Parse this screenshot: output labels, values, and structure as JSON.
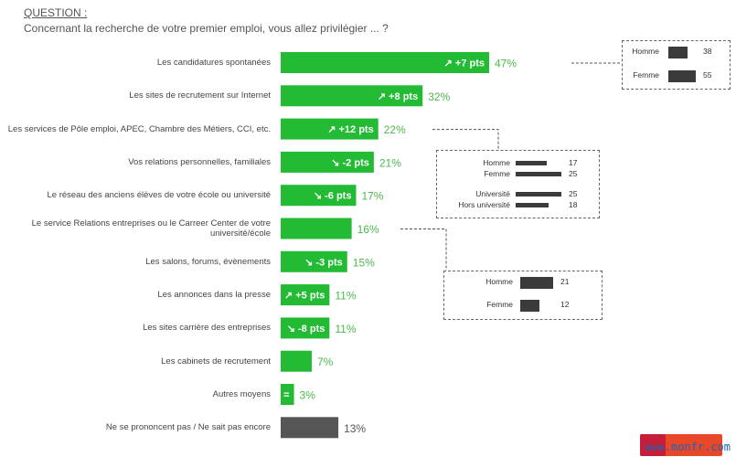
{
  "question": {
    "label": "QUESTION :",
    "text": "Concernant la recherche de votre premier emploi, vous allez privilégier ... ?"
  },
  "chart_data": {
    "type": "bar",
    "orientation": "horizontal",
    "unit": "%",
    "categories": [
      "Les candidatures spontanées",
      "Les sites de recrutement sur Internet",
      "Les services de Pôle emploi, APEC, Chambre des Métiers, CCI, etc.",
      "Vos relations personnelles, familiales",
      "Le réseau des anciens élèves de votre école ou université",
      "Le service Relations entreprises ou le Carreer Center de votre université/école",
      "Les salons, forums, évènements",
      "Les annonces dans la presse",
      "Les sites carrière  des entreprises",
      "Les cabinets de recrutement",
      "Autres moyens",
      "Ne se prononcent pas / Ne sait pas encore"
    ],
    "values": [
      47,
      32,
      22,
      21,
      17,
      16,
      15,
      11,
      11,
      7,
      3,
      13
    ],
    "value_labels": [
      "47%",
      "32%",
      "22%",
      "21%",
      "17%",
      "16%",
      "15%",
      "11%",
      "11%",
      "7%",
      "3%",
      "13%"
    ],
    "changes": [
      "+7 pts",
      "+8 pts",
      "+12 pts",
      "-2 pts",
      "-6 pts",
      "",
      "-3 pts",
      "+5 pts",
      "-8 pts",
      "",
      "=",
      ""
    ],
    "change_direction": [
      "up",
      "up",
      "up",
      "down",
      "down",
      "",
      "down",
      "up",
      "down",
      "",
      "equal",
      ""
    ],
    "bar_colors": [
      "#22bb33",
      "#22bb33",
      "#22bb33",
      "#22bb33",
      "#22bb33",
      "#22bb33",
      "#22bb33",
      "#22bb33",
      "#22bb33",
      "#22bb33",
      "#22bb33",
      "#555555"
    ],
    "xlim": [
      0,
      47
    ],
    "grid": false
  },
  "callouts": [
    {
      "category_index": 0,
      "rows": [
        {
          "label": "Homme",
          "value": 38
        },
        {
          "label": "Femme",
          "value": 55
        }
      ]
    },
    {
      "category_index": 2,
      "rows": [
        {
          "label": "Homme",
          "value": 17
        },
        {
          "label": "Femme",
          "value": 25
        },
        {
          "label": "Université",
          "value": 25
        },
        {
          "label": "Hors université",
          "value": 18
        }
      ]
    },
    {
      "category_index": 5,
      "rows": [
        {
          "label": "Homme",
          "value": 21
        },
        {
          "label": "Femme",
          "value": 12
        }
      ]
    }
  ],
  "colors": {
    "accent_green": "#22bb33",
    "value_green": "#4cb84c",
    "neutral_bar": "#555555",
    "callout_bar": "#3b3b3b"
  },
  "watermark": "www.monfr.com"
}
